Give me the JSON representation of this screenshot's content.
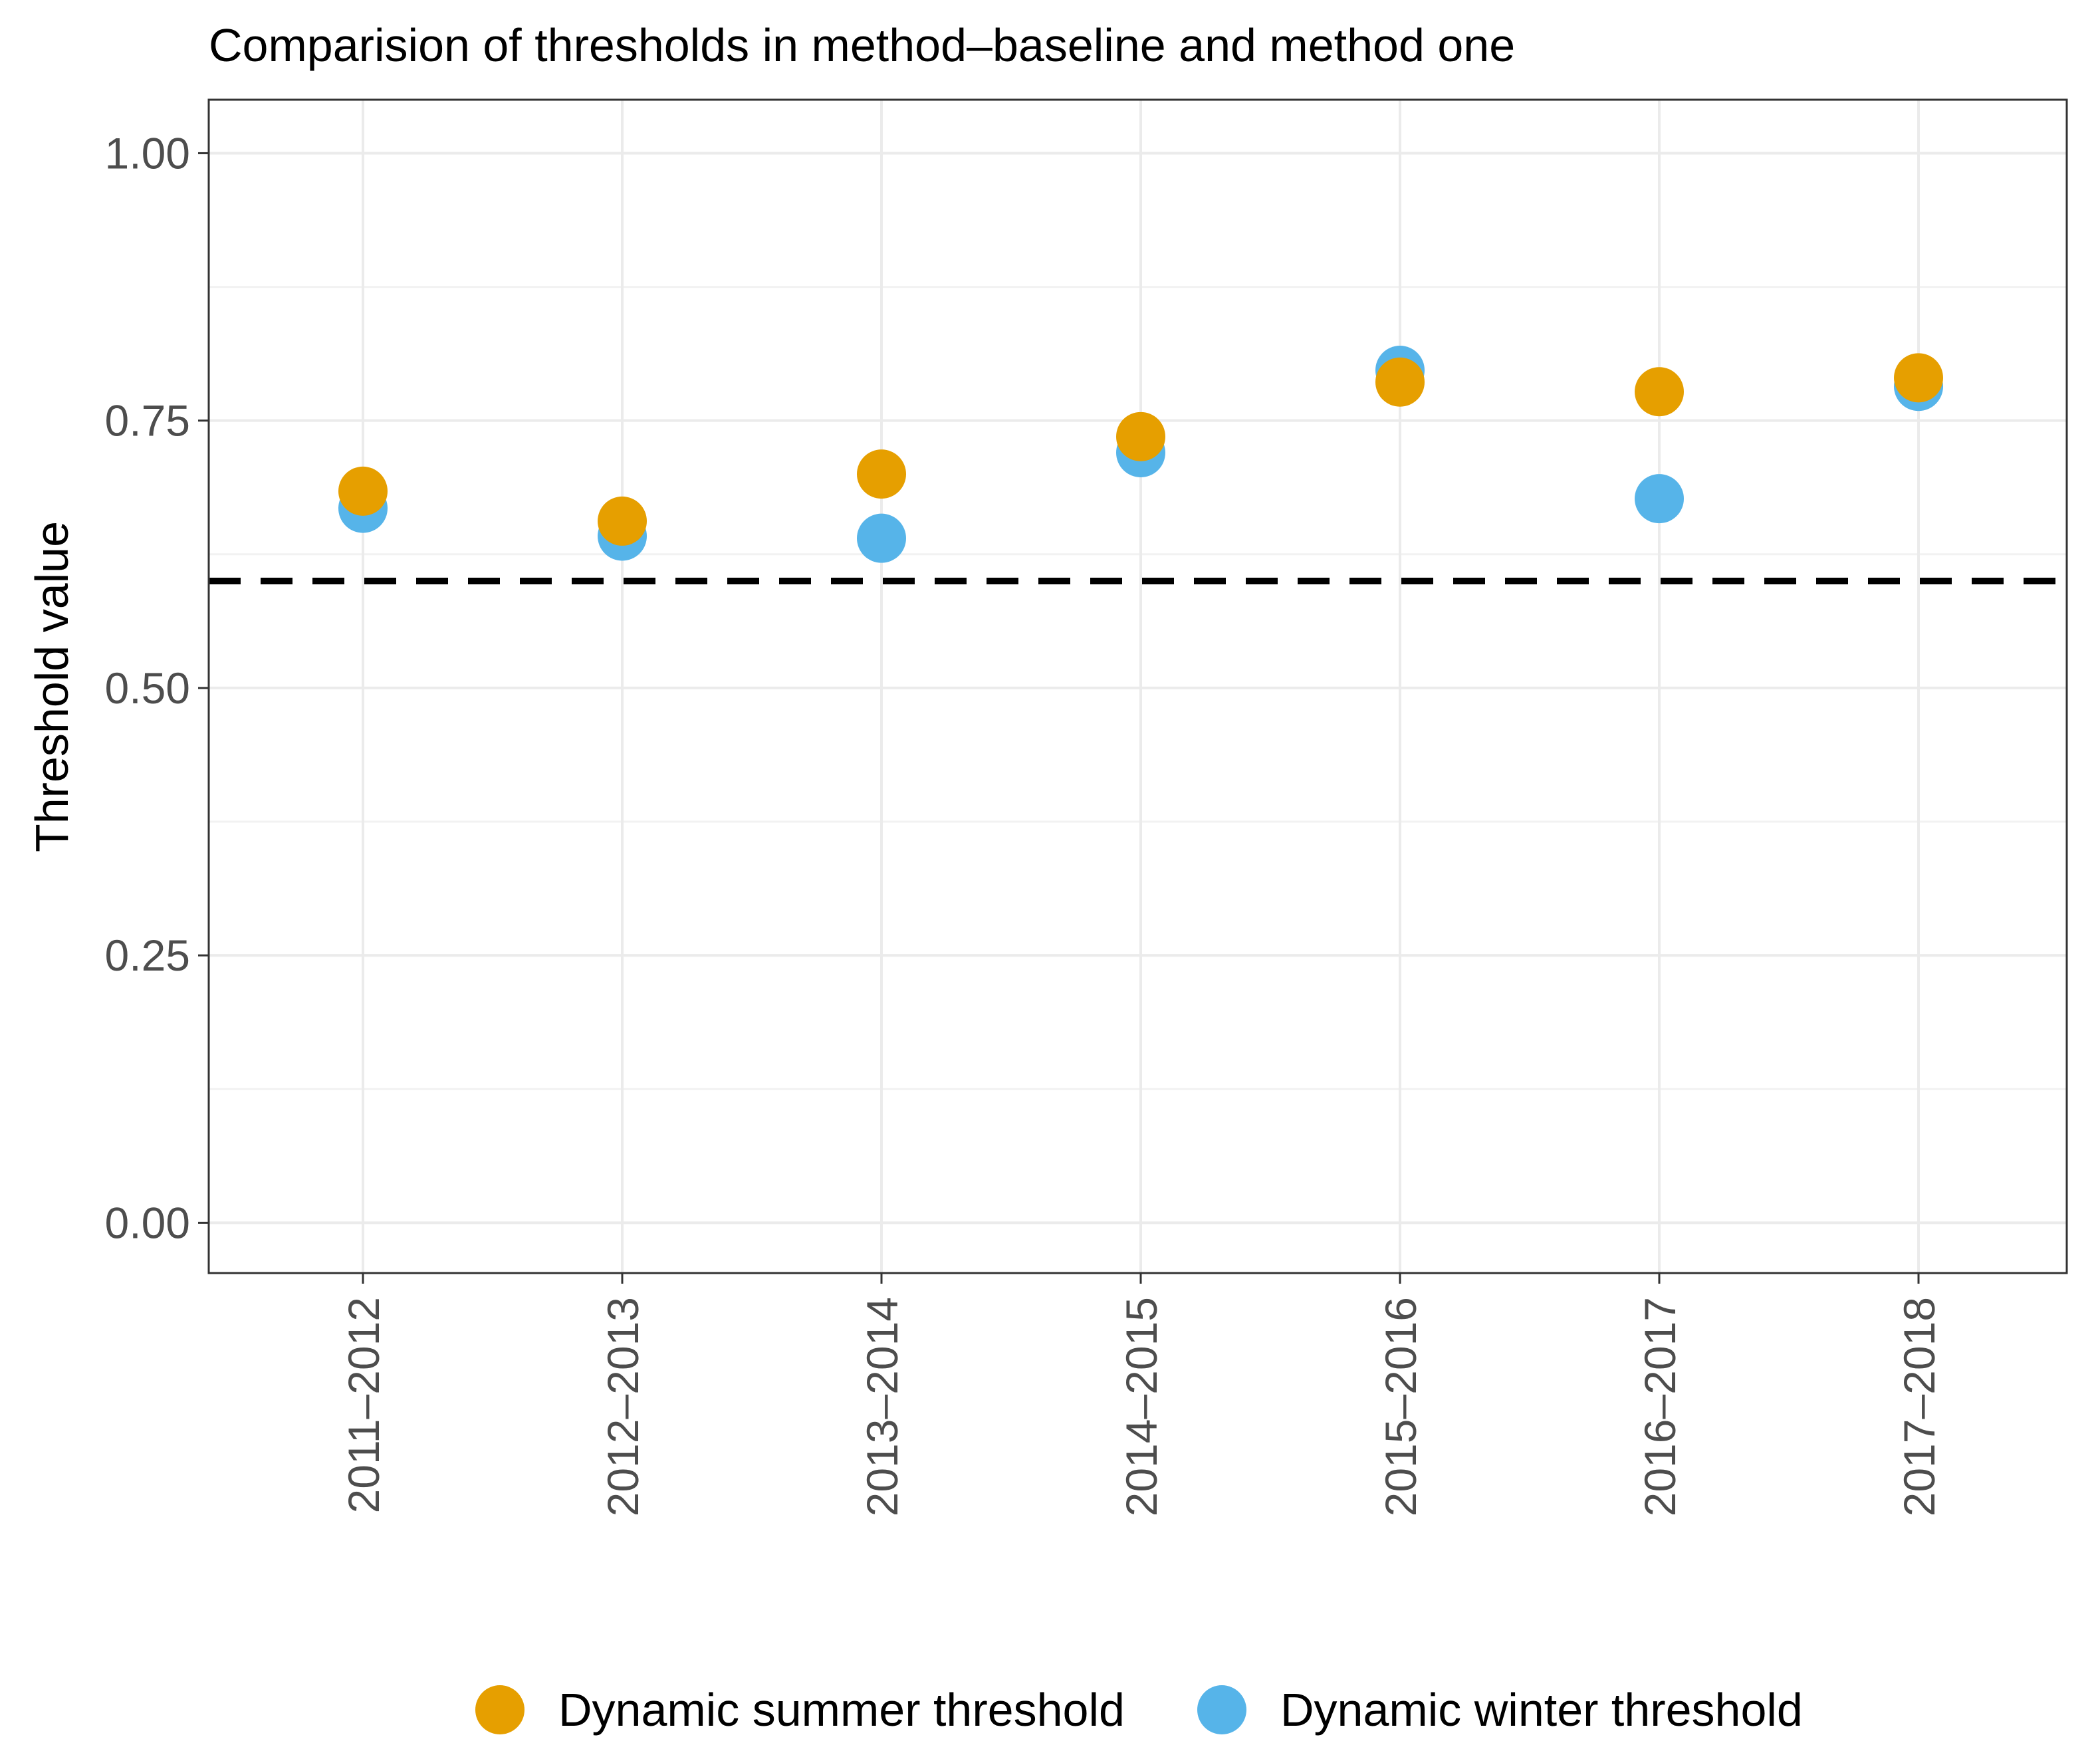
{
  "chart_data": {
    "type": "scatter",
    "title": "Comparision of thresholds in method–baseline and method one",
    "xlabel": "",
    "ylabel": "Threshold value",
    "categories": [
      "2011–2012",
      "2012–2013",
      "2013–2014",
      "2014–2015",
      "2015–2016",
      "2016–2017",
      "2017–2018"
    ],
    "ylim": [
      -0.047,
      1.05
    ],
    "yticks": [
      0.0,
      0.25,
      0.5,
      0.75,
      1.0
    ],
    "ytick_labels": [
      "0.00",
      "0.25",
      "0.50",
      "0.75",
      "1.00"
    ],
    "grid": true,
    "reference_line": {
      "y": 0.6,
      "style": "dashed",
      "color": "#000000"
    },
    "legend_position": "bottom",
    "series": [
      {
        "name": "Dynamic winter threshold",
        "color": "#56B4E9",
        "values": [
          0.668,
          0.642,
          0.64,
          0.72,
          0.797,
          0.677,
          0.782
        ]
      },
      {
        "name": "Dynamic summer threshold",
        "color": "#E69F00",
        "values": [
          0.684,
          0.656,
          0.7,
          0.735,
          0.786,
          0.777,
          0.79
        ]
      }
    ],
    "legend": [
      {
        "name": "Dynamic summer threshold",
        "color": "#E69F00"
      },
      {
        "name": "Dynamic winter threshold",
        "color": "#56B4E9"
      }
    ]
  }
}
